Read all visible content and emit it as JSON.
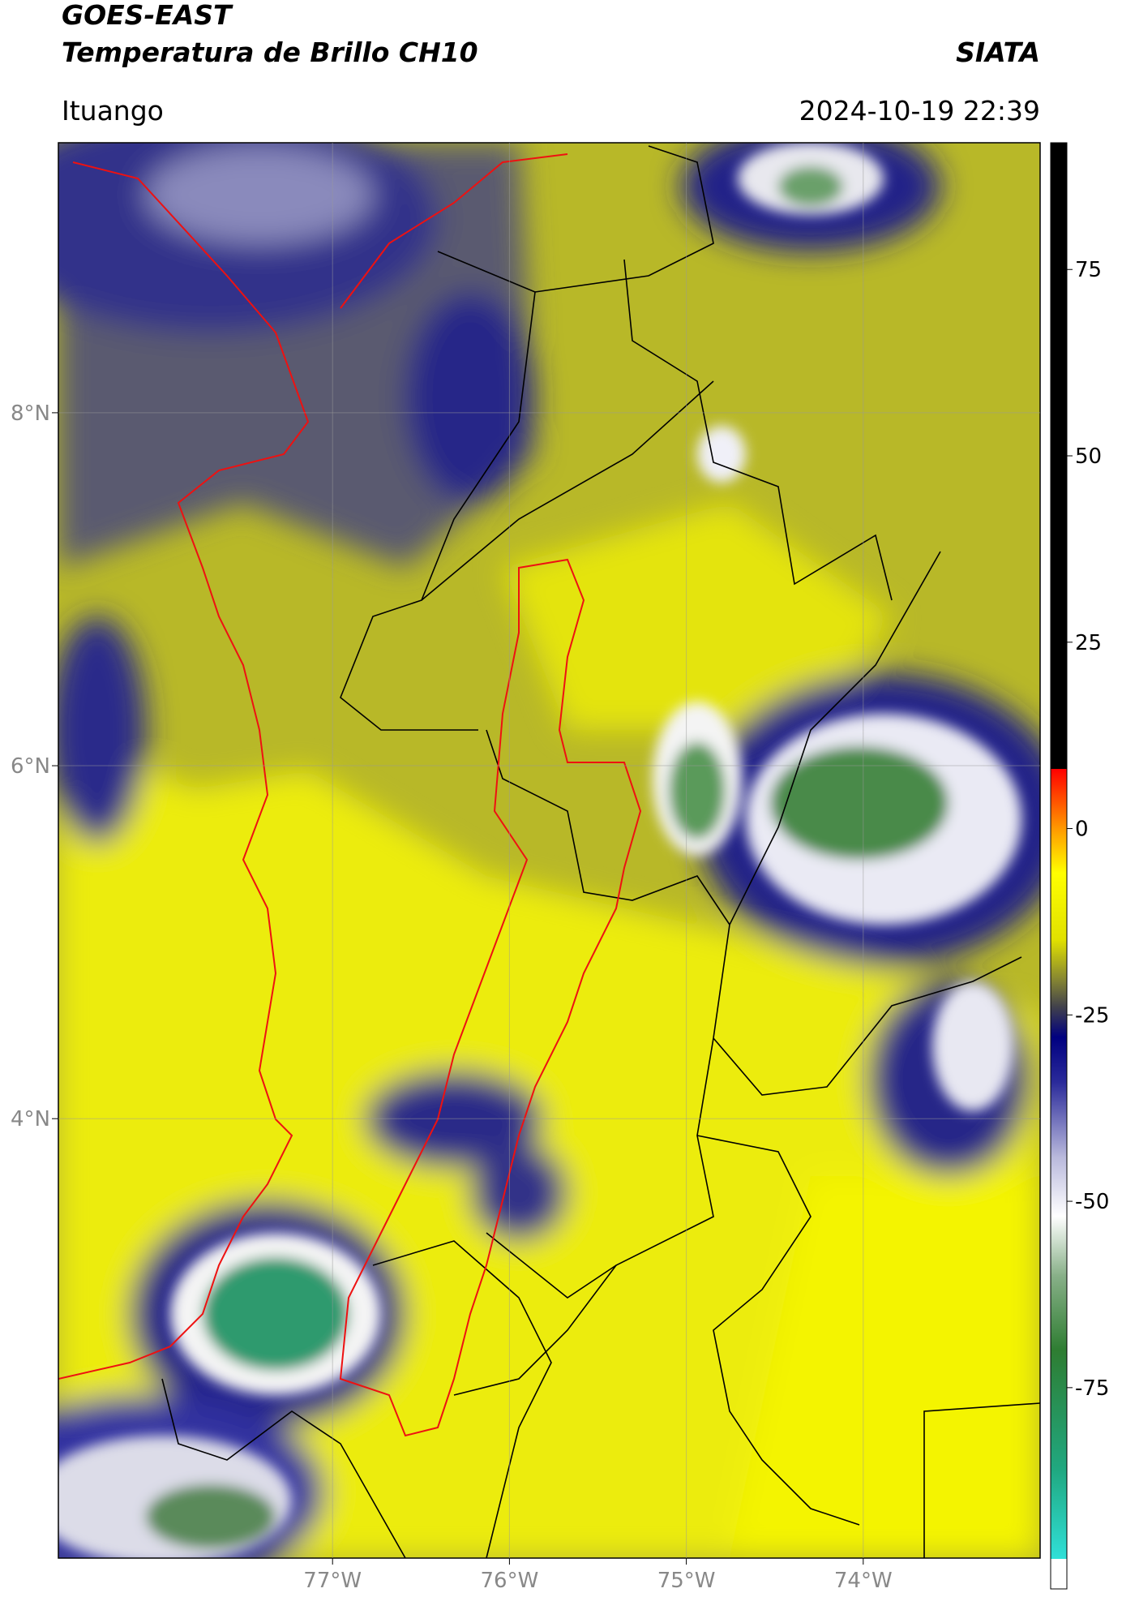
{
  "chart_data": {
    "type": "map",
    "title": "GOES-EAST",
    "subtitle": "Temperatura de Brillo CH10",
    "source": "SIATA",
    "location": "Ituango",
    "datetime": "2024-10-19 22:39",
    "xlim": [
      -78.55,
      -73.0
    ],
    "ylim": [
      1.51,
      9.53
    ],
    "xticks": [
      {
        "value": -77,
        "label": "77°W"
      },
      {
        "value": -76,
        "label": "76°W"
      },
      {
        "value": -75,
        "label": "75°W"
      },
      {
        "value": -74,
        "label": "74°W"
      }
    ],
    "yticks": [
      {
        "value": 8,
        "label": "8°N"
      },
      {
        "value": 6,
        "label": "6°N"
      },
      {
        "value": 4,
        "label": "4°N"
      }
    ],
    "grid": true,
    "colorbar": {
      "lim": [
        -102,
        92
      ],
      "ticks": [
        75,
        50,
        25,
        0,
        -25,
        -50,
        -75
      ],
      "stops": [
        {
          "value": -102,
          "color": "#ffffff"
        },
        {
          "value": -98,
          "color": "#ffffff"
        },
        {
          "value": -98,
          "color": "#30e0d8"
        },
        {
          "value": -86,
          "color": "#20a880"
        },
        {
          "value": -70,
          "color": "#2e7d32"
        },
        {
          "value": -60,
          "color": "#88b088"
        },
        {
          "value": -52,
          "color": "#ffffff"
        },
        {
          "value": -44,
          "color": "#b8b8dc"
        },
        {
          "value": -34,
          "color": "#2a2a9a"
        },
        {
          "value": -28,
          "color": "#000080"
        },
        {
          "value": -24,
          "color": "#40404c"
        },
        {
          "value": -20,
          "color": "#8a8a30"
        },
        {
          "value": -15,
          "color": "#e0e000"
        },
        {
          "value": -6,
          "color": "#ffff00"
        },
        {
          "value": 0,
          "color": "#ff9900"
        },
        {
          "value": 8,
          "color": "#ff0000"
        },
        {
          "value": 8,
          "color": "#000000"
        },
        {
          "value": 92,
          "color": "#000000"
        }
      ]
    }
  }
}
